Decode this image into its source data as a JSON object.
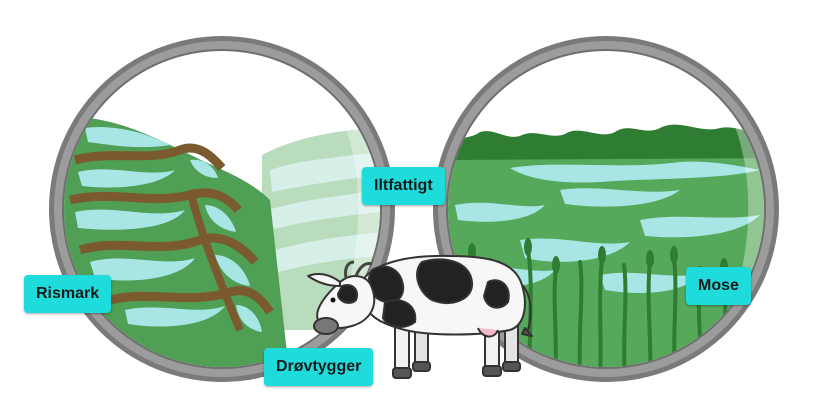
{
  "labels": {
    "rismark": "Rismark",
    "iltfattigt": "Iltfattigt",
    "mose": "Mose",
    "drovtygger": "Drøvtygger"
  },
  "icons": {
    "left_lens": "rice-terrace-scene",
    "right_lens": "wetland-bog-scene",
    "cow": "cow-icon"
  },
  "colors": {
    "label_bg": "#1fdcdc",
    "frame": "#8a8a8a",
    "grass": "#56a85a",
    "water": "#a8e6e6",
    "soil": "#7a5a2e",
    "dark_green": "#2e7d32"
  }
}
